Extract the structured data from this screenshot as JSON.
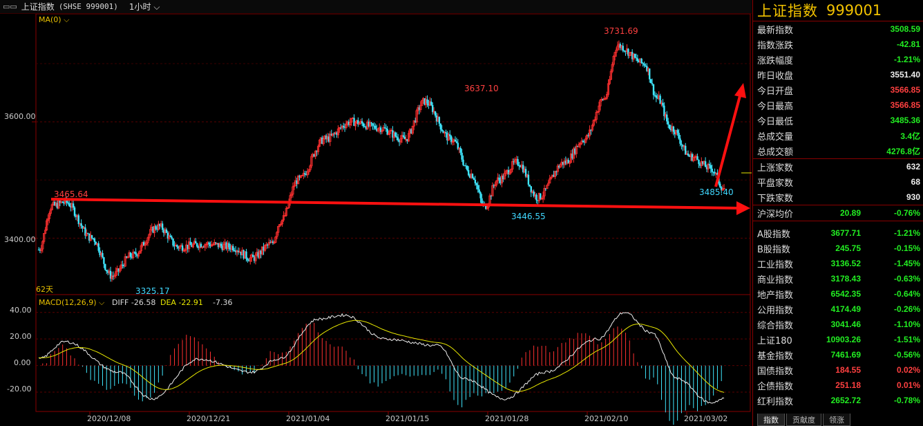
{
  "topbar": {
    "icon": "window-icon",
    "title": "上证指数",
    "code": "(SHSE 999001)",
    "period": "1小时"
  },
  "main_chart": {
    "indicator_label": "MA(0)",
    "y_ticks": [
      "3600.00",
      "3400.00"
    ],
    "bars_label": "62天",
    "annotations": [
      "3465.64",
      "3325.17",
      "3637.10",
      "3446.55",
      "3731.69",
      "3485.40"
    ]
  },
  "macd": {
    "label": "MACD(12,26,9)",
    "diff": "DIFF -26.58",
    "dea": "DEA -22.91",
    "macd": "-7.36",
    "y_ticks": [
      "40.00",
      "20.00",
      "0.00",
      "-20.00"
    ]
  },
  "x_axis": {
    "dates": [
      "2020/12/08",
      "2020/12/21",
      "2021/01/04",
      "2021/01/15",
      "2021/01/28",
      "2021/02/10",
      "2021/03/02"
    ]
  },
  "side": {
    "name": "上证指数",
    "code": "999001",
    "quote": [
      {
        "label": "最新指数",
        "value": "3508.59",
        "color": "g"
      },
      {
        "label": "指数涨跌",
        "value": "-42.81",
        "color": "g"
      },
      {
        "label": "涨跌幅度",
        "value": "-1.21%",
        "color": "g"
      },
      {
        "label": "昨日收盘",
        "value": "3551.40",
        "color": "w"
      },
      {
        "label": "今日开盘",
        "value": "3566.85",
        "color": "r"
      },
      {
        "label": "今日最高",
        "value": "3566.85",
        "color": "r"
      },
      {
        "label": "今日最低",
        "value": "3485.36",
        "color": "g"
      },
      {
        "label": "总成交量",
        "value": "3.4亿",
        "color": "g"
      },
      {
        "label": "总成交额",
        "value": "4276.8亿",
        "color": "g"
      }
    ],
    "breadth": [
      {
        "label": "上涨家数",
        "value": "632",
        "color": "w"
      },
      {
        "label": "平盘家数",
        "value": "68",
        "color": "w"
      },
      {
        "label": "下跌家数",
        "value": "930",
        "color": "w"
      }
    ],
    "avg": {
      "label": "沪深均价",
      "v1": "20.89",
      "v2": "-0.76%"
    },
    "indices": [
      {
        "label": "A股指数",
        "v1": "3677.71",
        "v2": "-1.21%",
        "color": "g"
      },
      {
        "label": "B股指数",
        "v1": "245.75",
        "v2": "-0.15%",
        "color": "g"
      },
      {
        "label": "工业指数",
        "v1": "3136.52",
        "v2": "-1.45%",
        "color": "g"
      },
      {
        "label": "商业指数",
        "v1": "3178.43",
        "v2": "-0.63%",
        "color": "g"
      },
      {
        "label": "地产指数",
        "v1": "6542.35",
        "v2": "-0.64%",
        "color": "g"
      },
      {
        "label": "公用指数",
        "v1": "4174.49",
        "v2": "-0.26%",
        "color": "g"
      },
      {
        "label": "综合指数",
        "v1": "3041.46",
        "v2": "-1.10%",
        "color": "g"
      },
      {
        "label": "上证180",
        "v1": "10903.26",
        "v2": "-1.51%",
        "color": "g"
      },
      {
        "label": "基金指数",
        "v1": "7461.69",
        "v2": "-0.56%",
        "color": "g"
      },
      {
        "label": "国债指数",
        "v1": "184.55",
        "v2": "0.02%",
        "color": "r"
      },
      {
        "label": "企债指数",
        "v1": "251.18",
        "v2": "0.01%",
        "color": "r"
      },
      {
        "label": "红利指数",
        "v1": "2652.72",
        "v2": "-0.78%",
        "color": "g"
      }
    ],
    "tabs": [
      "指数",
      "贡献度",
      "领涨"
    ]
  },
  "chart_data": {
    "type": "candlestick",
    "price_anchors": [
      [
        0,
        3380
      ],
      [
        10,
        3455
      ],
      [
        20,
        3462
      ],
      [
        40,
        3400
      ],
      [
        55,
        3335
      ],
      [
        70,
        3370
      ],
      [
        90,
        3420
      ],
      [
        105,
        3385
      ],
      [
        125,
        3390
      ],
      [
        145,
        3385
      ],
      [
        160,
        3365
      ],
      [
        175,
        3390
      ],
      [
        182,
        3430
      ],
      [
        195,
        3500
      ],
      [
        215,
        3570
      ],
      [
        235,
        3600
      ],
      [
        255,
        3590
      ],
      [
        275,
        3570
      ],
      [
        290,
        3635
      ],
      [
        310,
        3570
      ],
      [
        325,
        3510
      ],
      [
        335,
        3455
      ],
      [
        345,
        3500
      ],
      [
        360,
        3530
      ],
      [
        375,
        3470
      ],
      [
        395,
        3530
      ],
      [
        410,
        3570
      ],
      [
        425,
        3640
      ],
      [
        435,
        3731
      ],
      [
        455,
        3700
      ],
      [
        465,
        3640
      ],
      [
        475,
        3590
      ],
      [
        490,
        3540
      ],
      [
        505,
        3520
      ],
      [
        515,
        3485
      ]
    ],
    "macd_dif_anchors": [
      [
        0,
        5
      ],
      [
        20,
        18
      ],
      [
        60,
        -5
      ],
      [
        85,
        -25
      ],
      [
        120,
        5
      ],
      [
        160,
        -5
      ],
      [
        180,
        5
      ],
      [
        210,
        35
      ],
      [
        230,
        38
      ],
      [
        260,
        20
      ],
      [
        300,
        15
      ],
      [
        320,
        -10
      ],
      [
        350,
        -25
      ],
      [
        380,
        -5
      ],
      [
        420,
        20
      ],
      [
        440,
        40
      ],
      [
        460,
        25
      ],
      [
        480,
        -10
      ],
      [
        505,
        -28
      ],
      [
        515,
        -25
      ]
    ],
    "price_range": [
      3310,
      3750
    ],
    "macd_range": [
      -33,
      43
    ]
  }
}
